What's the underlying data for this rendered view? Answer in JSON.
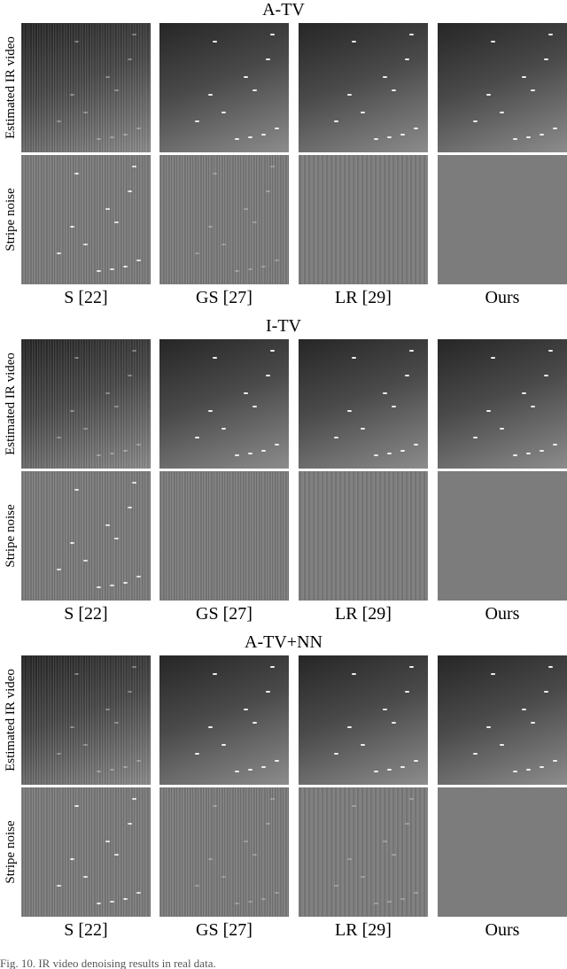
{
  "sections": [
    {
      "title": "A-TV",
      "row_labels": [
        "Estimated IR video",
        "Stripe noise"
      ],
      "column_labels": [
        "S [22]",
        "GS [27]",
        "LR [29]",
        "Ours"
      ]
    },
    {
      "title": "I-TV",
      "row_labels": [
        "Estimated IR video",
        "Stripe noise"
      ],
      "column_labels": [
        "S [22]",
        "GS [27]",
        "LR [29]",
        "Ours"
      ]
    },
    {
      "title": "A-TV+NN",
      "row_labels": [
        "Estimated IR video",
        "Stripe noise"
      ],
      "column_labels": [
        "S [22]",
        "GS [27]",
        "LR [29]",
        "Ours"
      ]
    }
  ],
  "caption": "Fig. 10.  IR video denoising results in real data."
}
